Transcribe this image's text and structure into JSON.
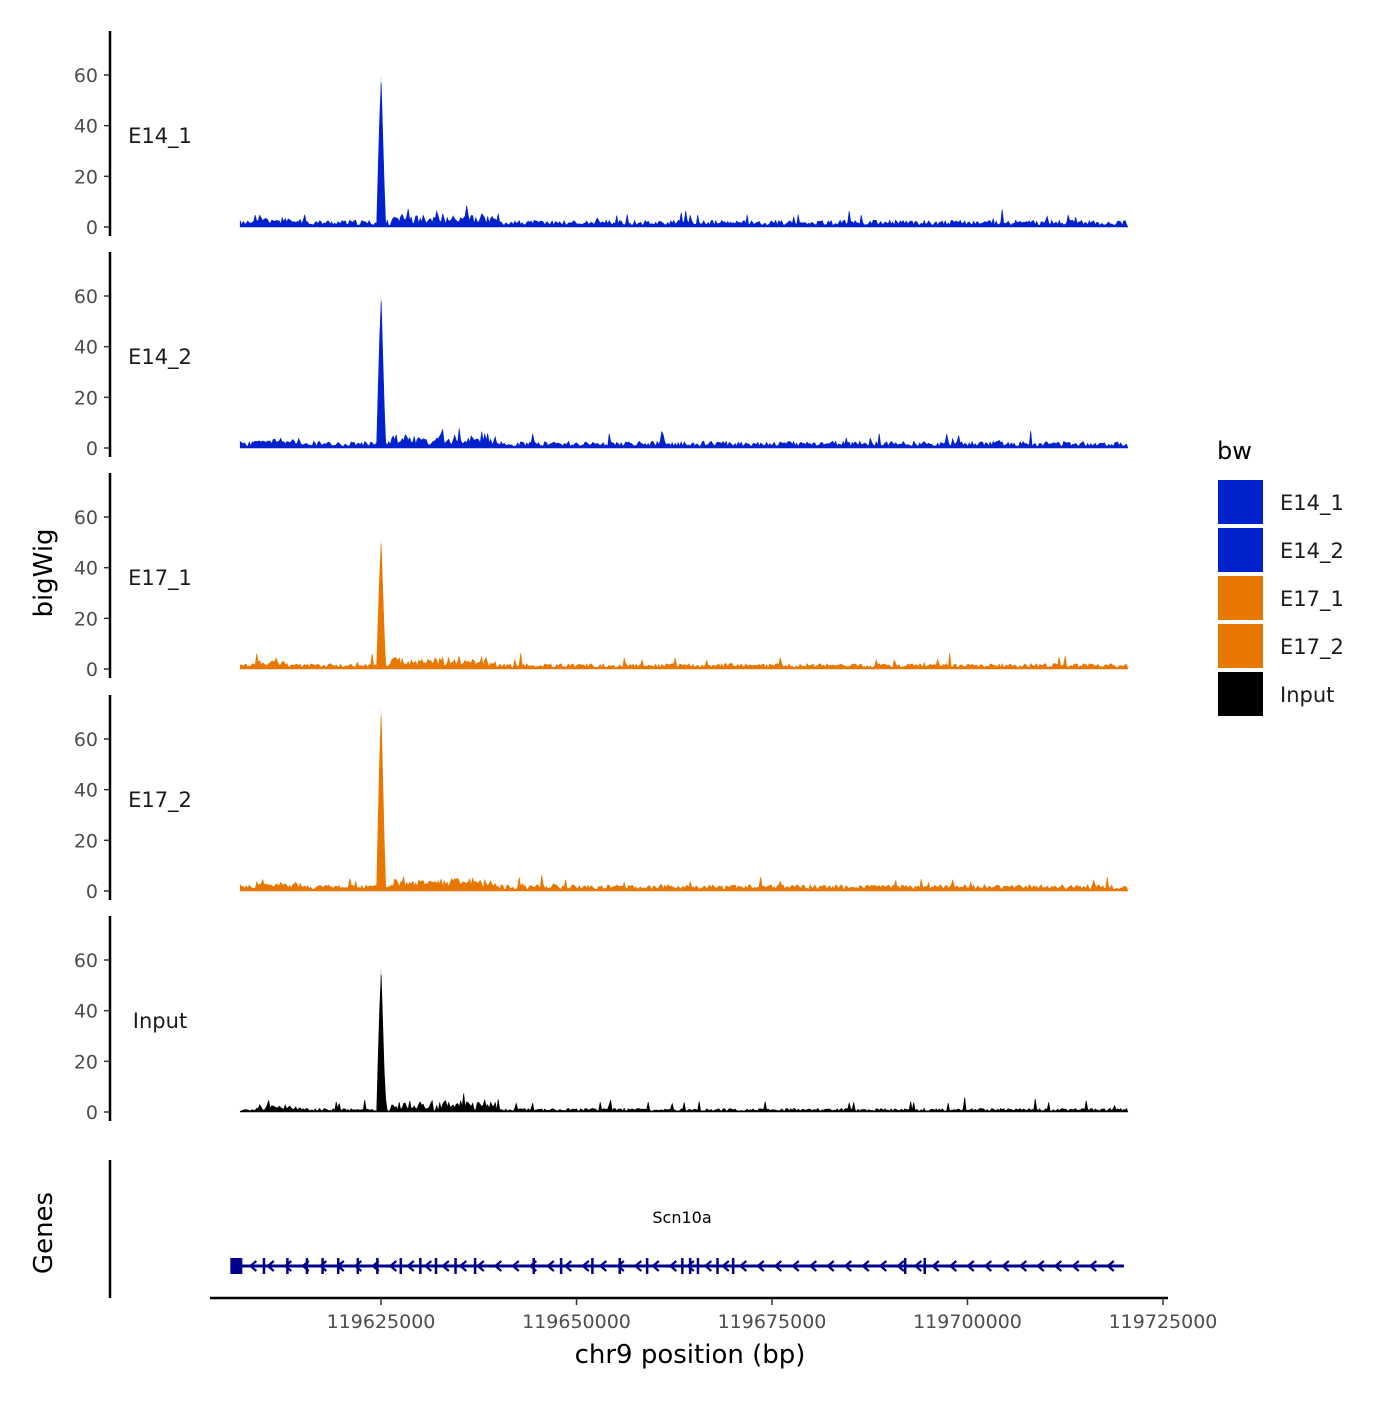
{
  "chart_data": {
    "type": "area",
    "ylabel": "bigWig",
    "xlabel": "chr9 position (bp)",
    "genes_label": "Genes",
    "xlim": [
      119606000,
      119725000
    ],
    "x_ticks": [
      119625000,
      119650000,
      119675000,
      119700000,
      119725000
    ],
    "x_tick_labels": [
      "119625000",
      "119650000",
      "119675000",
      "119700000",
      "119725000"
    ],
    "ylim": [
      0,
      75
    ],
    "y_ticks": [
      0,
      20,
      40,
      60
    ],
    "y_tick_labels": [
      "0",
      "20",
      "40",
      "60"
    ],
    "signal_range": [
      119607000,
      119720500
    ],
    "tracks": [
      {
        "name": "E14_1",
        "color": "#0022CC",
        "peak_position": 119625000,
        "peak_value": 60,
        "baseline": 1.5,
        "seed": 11
      },
      {
        "name": "E14_2",
        "color": "#0022CC",
        "peak_position": 119625000,
        "peak_value": 61,
        "baseline": 1.5,
        "seed": 23
      },
      {
        "name": "E17_1",
        "color": "#E87700",
        "peak_position": 119625000,
        "peak_value": 52,
        "baseline": 1.2,
        "seed": 37
      },
      {
        "name": "E17_2",
        "color": "#E87700",
        "peak_position": 119625000,
        "peak_value": 73,
        "baseline": 1.4,
        "seed": 41
      },
      {
        "name": "Input",
        "color": "#000000",
        "peak_position": 119625000,
        "peak_value": 57,
        "baseline": 0.8,
        "seed": 53
      }
    ],
    "gene": {
      "name": "Scn10a",
      "strand": "-",
      "start": 119606500,
      "end": 119720000,
      "color": "#00008B",
      "exons": [
        119606700,
        119610000,
        119613000,
        119615500,
        119617500,
        119619500,
        119622000,
        119624500,
        119627500,
        119630000,
        119632000,
        119634500,
        119637000,
        119644500,
        119648000,
        119652000,
        119655500,
        119659000,
        119663500,
        119664500,
        119665500,
        119668000,
        119670000,
        119692000,
        119694500
      ]
    },
    "legend": {
      "title": "bw",
      "entries": [
        {
          "label": "E14_1",
          "color": "#0022CC"
        },
        {
          "label": "E14_2",
          "color": "#0022CC"
        },
        {
          "label": "E17_1",
          "color": "#E87700"
        },
        {
          "label": "E17_2",
          "color": "#E87700"
        },
        {
          "label": "Input",
          "color": "#000000"
        }
      ]
    }
  }
}
